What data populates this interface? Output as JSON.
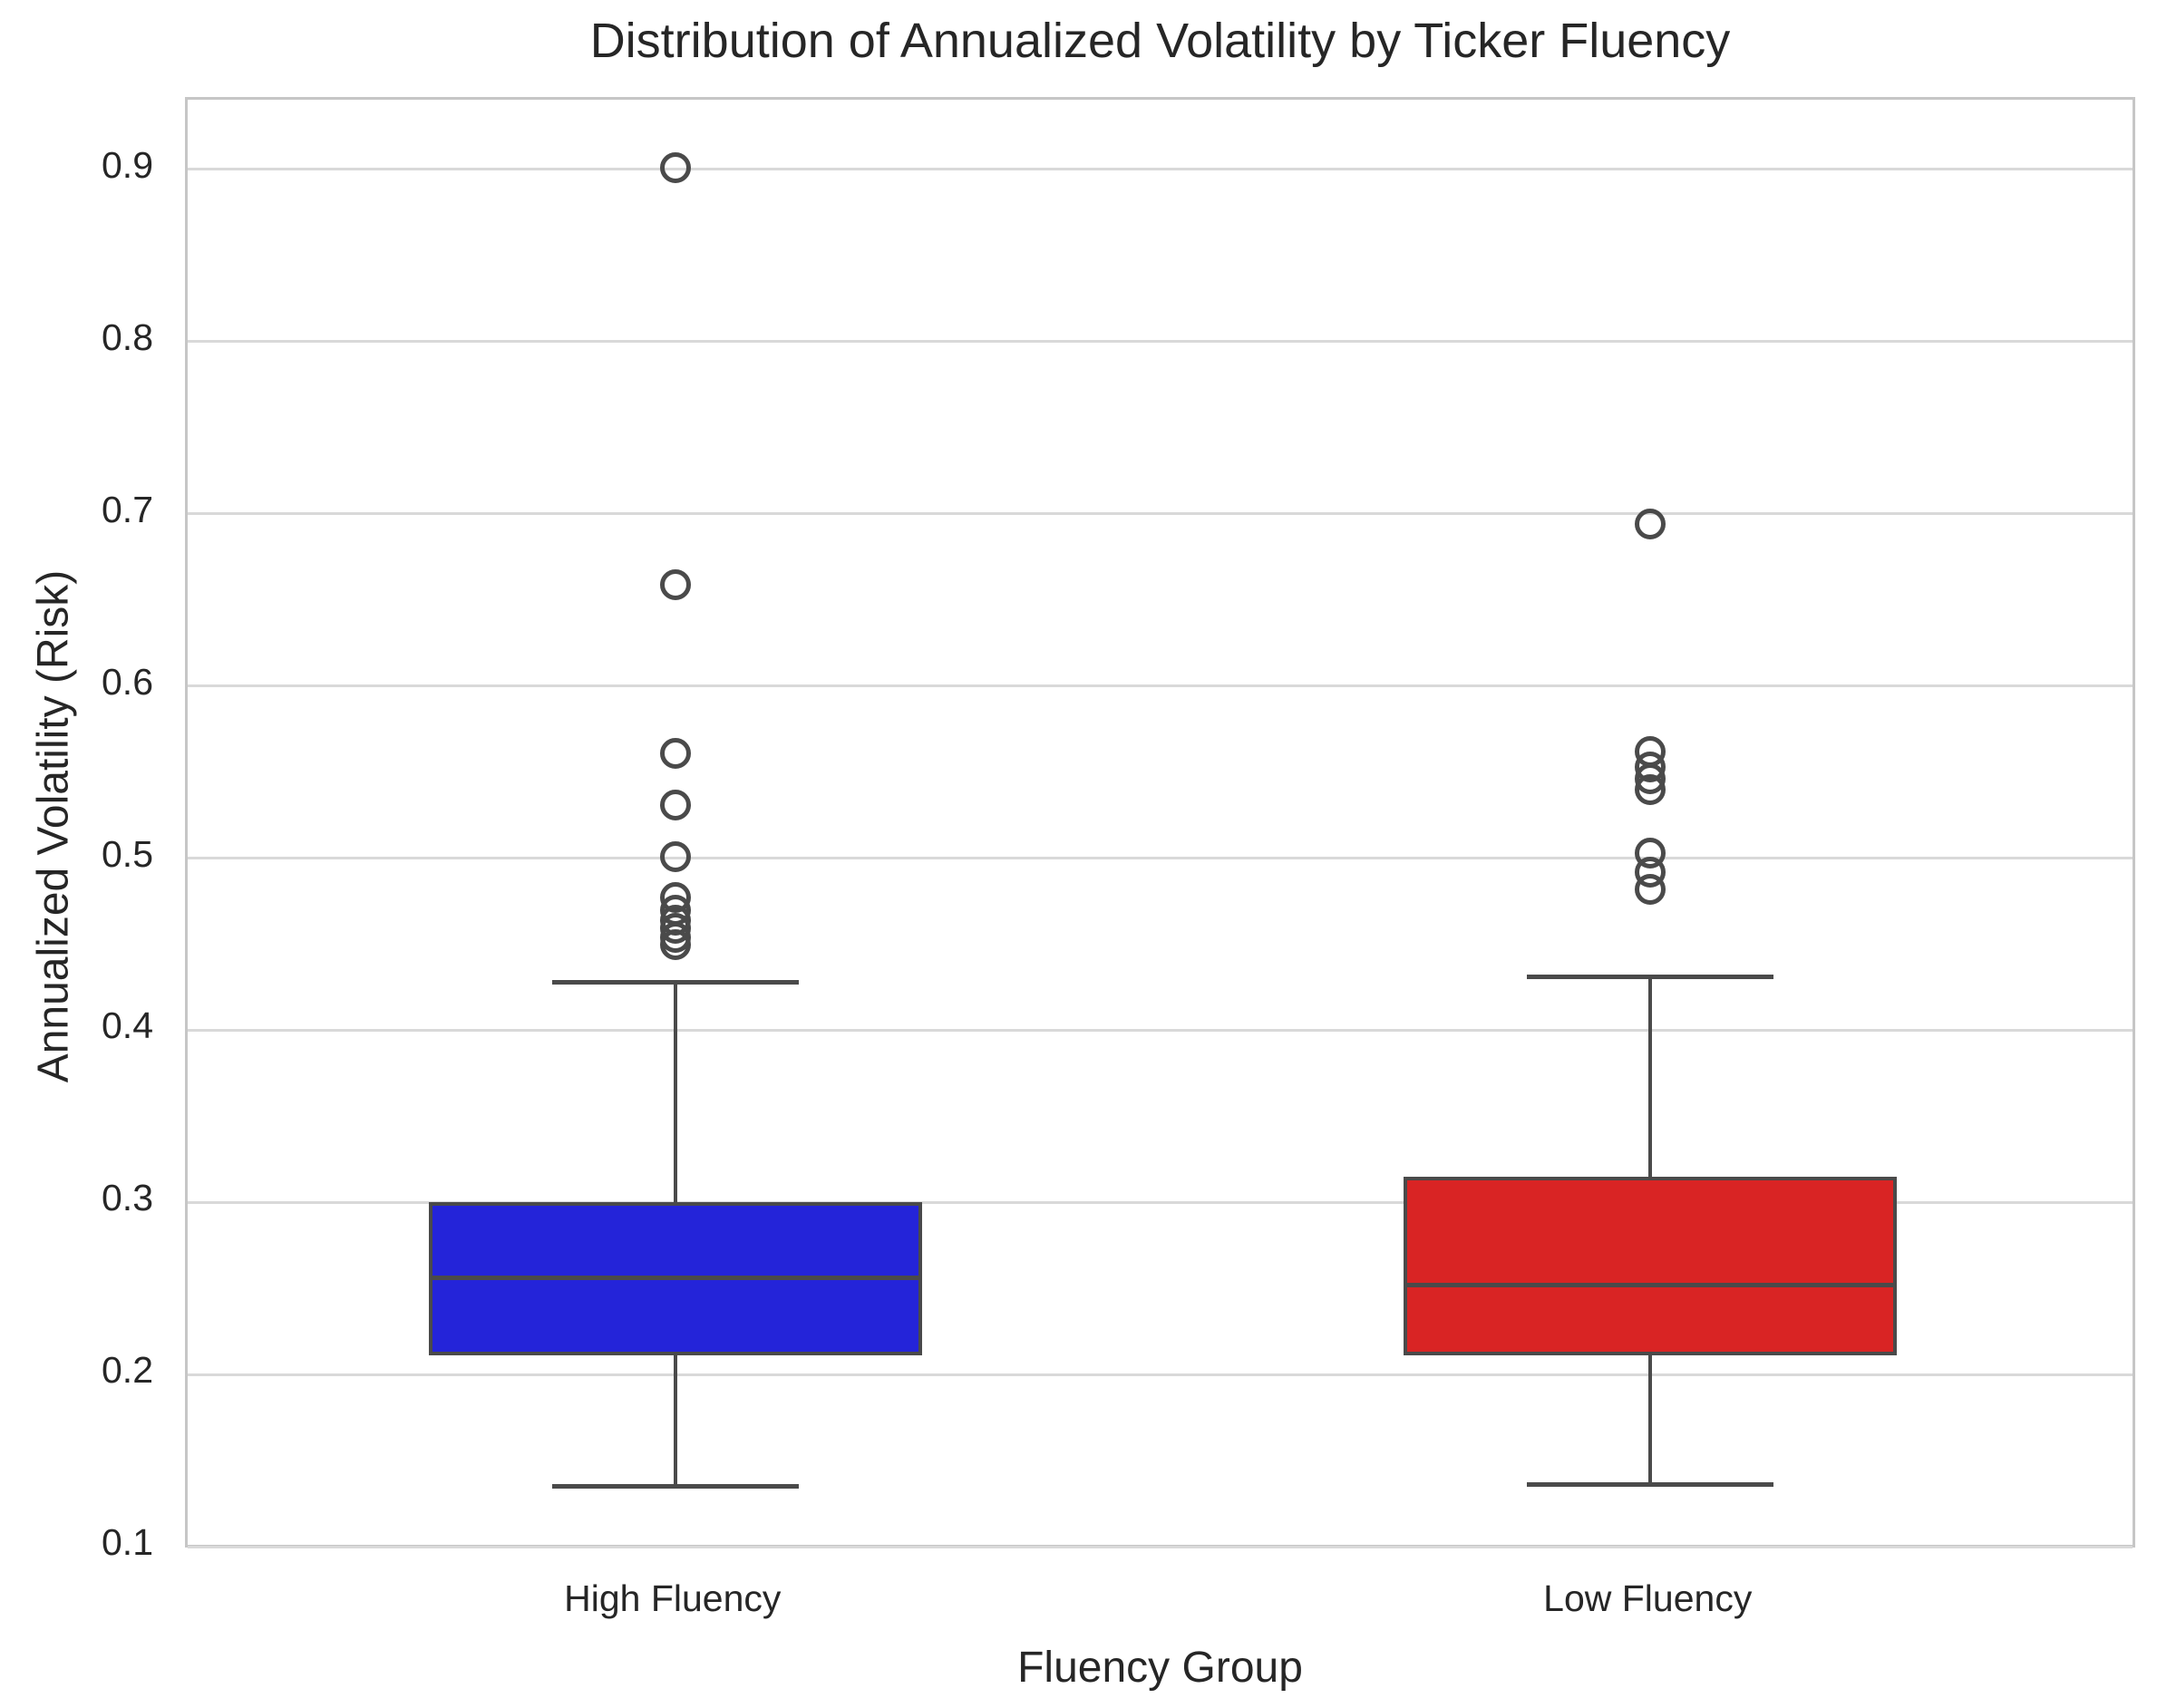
{
  "chart_data": {
    "type": "boxplot",
    "title": "Distribution of Annualized Volatility by Ticker Fluency",
    "xlabel": "Fluency Group",
    "ylabel": "Annualized Volatility (Risk)",
    "categories": [
      "High Fluency",
      "Low Fluency"
    ],
    "y_ticks": [
      0.1,
      0.2,
      0.3,
      0.4,
      0.5,
      0.6,
      0.7,
      0.8,
      0.9
    ],
    "ylim": [
      0.098,
      0.9405
    ],
    "grid": "horizontal-only",
    "legend": "none",
    "series": [
      {
        "name": "High Fluency",
        "color": "#2424d9",
        "whisker_low": 0.135,
        "q1": 0.211,
        "median": 0.256,
        "q3": 0.3,
        "whisker_high": 0.428,
        "outliers": [
          0.45,
          0.454,
          0.459,
          0.464,
          0.47,
          0.477,
          0.501,
          0.531,
          0.561,
          0.659,
          0.901
        ]
      },
      {
        "name": "Low Fluency",
        "color": "#d92424",
        "whisker_low": 0.136,
        "q1": 0.211,
        "median": 0.252,
        "q3": 0.315,
        "whisker_high": 0.431,
        "outliers": [
          0.482,
          0.492,
          0.503,
          0.54,
          0.546,
          0.553,
          0.562,
          0.694
        ]
      }
    ],
    "style": {
      "grid_color": "#d9d9d9",
      "spine_color": "#c6c6c6",
      "line_color": "#4a4a4a",
      "text_color": "#262626",
      "background": "#ffffff"
    }
  }
}
